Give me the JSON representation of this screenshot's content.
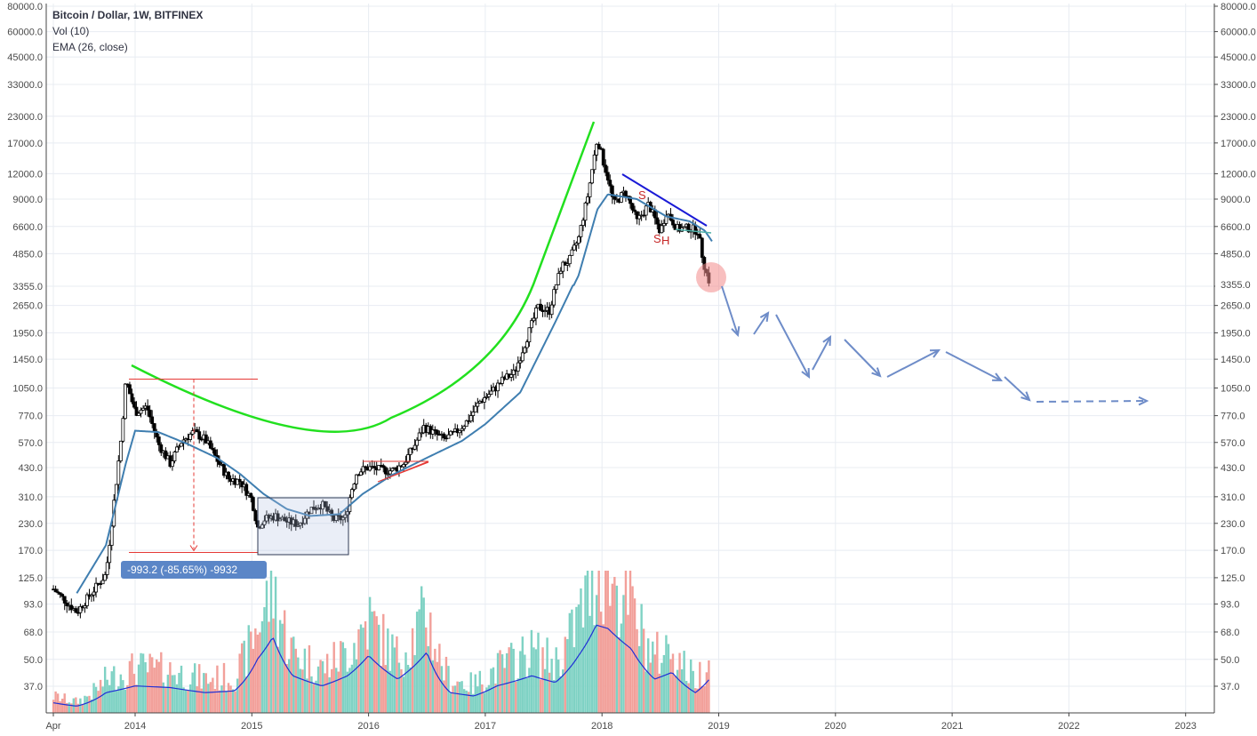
{
  "legend": {
    "title": "Bitcoin / Dollar, 1W, BITFINEX",
    "volume": "Vol (10)",
    "ema": "EMA (26, close)"
  },
  "measure_label": "-993.2 (-85.65%) -9932",
  "price_current_label": "3355.0",
  "colors": {
    "background": "#ffffff",
    "grid": "#e8ecf2",
    "candle": "#000000",
    "ema": "#3f7eb0",
    "volume_up": "#7fd2c4",
    "volume_down": "#f2a09a",
    "volume_ma": "#1f2fd6",
    "parabola": "#22e01f",
    "trendline": "#1a1ad6",
    "projection": "#6e8cc8",
    "measure": "#e53935",
    "badge": "#5b86c7",
    "marker": "#f28b8b"
  },
  "chart_data": {
    "type": "candlestick",
    "yscale": "log",
    "price_axis_ticks": [
      "80000.0",
      "60000.0",
      "45000.0",
      "33000.0",
      "23000.0",
      "17000.0",
      "12000.0",
      "9000.0",
      "6600.0",
      "4850.0",
      "3355.0",
      "2650.0",
      "1950.0",
      "1450.0",
      "1050.0",
      "770.0",
      "570.0",
      "430.0",
      "310.0",
      "230.0",
      "170.0",
      "125.0",
      "93.0",
      "68.0",
      "50.0",
      "37.0"
    ],
    "time_axis_ticks": [
      "Apr",
      "2014",
      "2015",
      "2016",
      "2017",
      "2018",
      "2019",
      "2020",
      "2021",
      "2022",
      "2023"
    ],
    "price_path": [
      [
        2013.3,
        110
      ],
      [
        2013.5,
        85
      ],
      [
        2013.75,
        130
      ],
      [
        2013.88,
        600
      ],
      [
        2013.92,
        1150
      ],
      [
        2014.0,
        800
      ],
      [
        2014.1,
        850
      ],
      [
        2014.2,
        560
      ],
      [
        2014.3,
        450
      ],
      [
        2014.4,
        580
      ],
      [
        2014.5,
        640
      ],
      [
        2014.6,
        590
      ],
      [
        2014.7,
        470
      ],
      [
        2014.8,
        380
      ],
      [
        2014.9,
        370
      ],
      [
        2015.0,
        300
      ],
      [
        2015.05,
        220
      ],
      [
        2015.1,
        240
      ],
      [
        2015.2,
        250
      ],
      [
        2015.3,
        235
      ],
      [
        2015.4,
        228
      ],
      [
        2015.5,
        270
      ],
      [
        2015.6,
        285
      ],
      [
        2015.7,
        240
      ],
      [
        2015.8,
        245
      ],
      [
        2015.85,
        330
      ],
      [
        2015.9,
        410
      ],
      [
        2016.0,
        430
      ],
      [
        2016.1,
        420
      ],
      [
        2016.2,
        415
      ],
      [
        2016.3,
        450
      ],
      [
        2016.4,
        560
      ],
      [
        2016.47,
        680
      ],
      [
        2016.55,
        640
      ],
      [
        2016.65,
        590
      ],
      [
        2016.75,
        640
      ],
      [
        2016.85,
        730
      ],
      [
        2016.95,
        900
      ],
      [
        2017.05,
        1000
      ],
      [
        2017.15,
        1150
      ],
      [
        2017.25,
        1250
      ],
      [
        2017.35,
        1800
      ],
      [
        2017.45,
        2600
      ],
      [
        2017.55,
        2500
      ],
      [
        2017.65,
        4200
      ],
      [
        2017.72,
        4500
      ],
      [
        2017.8,
        5800
      ],
      [
        2017.88,
        9500
      ],
      [
        2017.96,
        18000
      ],
      [
        2018.0,
        14500
      ],
      [
        2018.05,
        11500
      ],
      [
        2018.1,
        8500
      ],
      [
        2018.2,
        9800
      ],
      [
        2018.3,
        7000
      ],
      [
        2018.4,
        8500
      ],
      [
        2018.5,
        6200
      ],
      [
        2018.55,
        7800
      ],
      [
        2018.65,
        6400
      ],
      [
        2018.75,
        6500
      ],
      [
        2018.82,
        6300
      ],
      [
        2018.87,
        4400
      ],
      [
        2018.9,
        3800
      ],
      [
        2018.93,
        3400
      ]
    ],
    "ema_path": [
      [
        2013.5,
        105
      ],
      [
        2013.75,
        180
      ],
      [
        2013.92,
        450
      ],
      [
        2014.0,
        650
      ],
      [
        2014.2,
        640
      ],
      [
        2014.45,
        560
      ],
      [
        2014.7,
        480
      ],
      [
        2014.9,
        400
      ],
      [
        2015.1,
        320
      ],
      [
        2015.3,
        270
      ],
      [
        2015.5,
        250
      ],
      [
        2015.75,
        255
      ],
      [
        2015.95,
        320
      ],
      [
        2016.2,
        395
      ],
      [
        2016.5,
        480
      ],
      [
        2016.8,
        580
      ],
      [
        2017.0,
        700
      ],
      [
        2017.3,
        1000
      ],
      [
        2017.6,
        2200
      ],
      [
        2017.8,
        3800
      ],
      [
        2017.96,
        8000
      ],
      [
        2018.05,
        9500
      ],
      [
        2018.3,
        9000
      ],
      [
        2018.55,
        7400
      ],
      [
        2018.75,
        7000
      ],
      [
        2018.88,
        6300
      ],
      [
        2018.95,
        5500
      ]
    ],
    "volume_ma_path": [
      [
        2013.3,
        0.06
      ],
      [
        2013.5,
        0.04
      ],
      [
        2013.75,
        0.12
      ],
      [
        2014.0,
        0.16
      ],
      [
        2014.3,
        0.15
      ],
      [
        2014.6,
        0.12
      ],
      [
        2014.85,
        0.13
      ],
      [
        2015.05,
        0.32
      ],
      [
        2015.18,
        0.45
      ],
      [
        2015.35,
        0.22
      ],
      [
        2015.6,
        0.16
      ],
      [
        2015.82,
        0.22
      ],
      [
        2016.0,
        0.34
      ],
      [
        2016.25,
        0.2
      ],
      [
        2016.5,
        0.36
      ],
      [
        2016.7,
        0.12
      ],
      [
        2016.9,
        0.1
      ],
      [
        2017.1,
        0.16
      ],
      [
        2017.4,
        0.22
      ],
      [
        2017.6,
        0.18
      ],
      [
        2017.8,
        0.34
      ],
      [
        2017.95,
        0.52
      ],
      [
        2018.05,
        0.5
      ],
      [
        2018.25,
        0.38
      ],
      [
        2018.45,
        0.2
      ],
      [
        2018.6,
        0.24
      ],
      [
        2018.8,
        0.12
      ],
      [
        2018.92,
        0.2
      ]
    ],
    "projection_points": [
      [
        2018.95,
        3400
      ],
      [
        2019.15,
        1950
      ],
      [
        2019.35,
        2650
      ],
      [
        2019.75,
        1180
      ],
      [
        2019.95,
        1950
      ],
      [
        2020.35,
        1180
      ],
      [
        2020.95,
        1650
      ],
      [
        2021.45,
        1150
      ],
      [
        2021.65,
        905
      ],
      [
        2022.7,
        905
      ]
    ],
    "measure": {
      "label": "-993.2 (-85.65%) -9932",
      "from_price": 1160,
      "to_price": 166
    }
  }
}
